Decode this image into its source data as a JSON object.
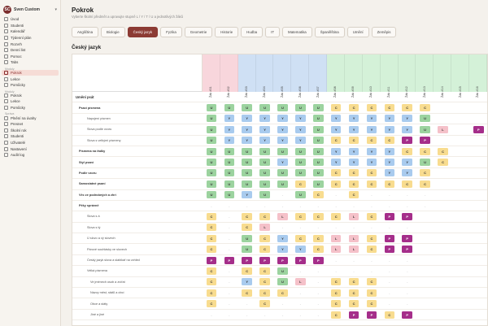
{
  "app": {
    "name": "Sven Custom",
    "logo": "SC"
  },
  "sidebar": {
    "items_top": [
      {
        "label": "Úvod",
        "icon": "home-icon"
      },
      {
        "label": "Studenti",
        "icon": "users-icon"
      },
      {
        "label": "Kalendář",
        "icon": "calendar-icon"
      },
      {
        "label": "Týdenní plán",
        "icon": "week-icon"
      },
      {
        "label": "Rozvrh",
        "icon": "grid-icon"
      },
      {
        "label": "Denní list",
        "icon": "doc-icon"
      },
      {
        "label": "Pomoc",
        "icon": "help-icon"
      },
      {
        "label": "Tabs",
        "icon": "tabs-icon"
      }
    ],
    "section1": "Moduly",
    "items_mid": [
      {
        "label": "Pokrok",
        "icon": "progress-icon",
        "active": true
      },
      {
        "label": "Lekce",
        "icon": "lesson-icon"
      },
      {
        "label": "Pomůcky",
        "icon": "tools-icon"
      }
    ],
    "section2": "Moduly",
    "items_mid2": [
      {
        "label": "Pokrok",
        "icon": "progress-icon"
      },
      {
        "label": "Lekce",
        "icon": "lesson-icon"
      },
      {
        "label": "Pomůcky",
        "icon": "tools-icon"
      }
    ],
    "section3": "Správa",
    "items_bottom": [
      {
        "label": "Plnění na úvahy",
        "icon": "task-icon"
      },
      {
        "label": "Presnet",
        "icon": "present-icon"
      },
      {
        "label": "Školní rok",
        "icon": "year-icon"
      },
      {
        "label": "Studenti",
        "icon": "students-icon"
      },
      {
        "label": "Uživatelé",
        "icon": "user-icon"
      },
      {
        "label": "Nastavení",
        "icon": "settings-icon"
      },
      {
        "label": "Audit log",
        "icon": "log-icon"
      }
    ]
  },
  "page": {
    "title": "Pokrok",
    "subtitle": "Vyberte školní předmět a upravujte stupně L / Y / T / U a jednotlivých žáků",
    "section_title": "Český jazyk"
  },
  "tabs": [
    "Angličtina",
    "Biologie",
    "Český jazyk",
    "Fyzika",
    "Geometrie",
    "Historie",
    "Hudba",
    "IT",
    "Matematika",
    "Španělština",
    "Umění",
    "Zeměpis"
  ],
  "active_tab": 2,
  "students": [
    {
      "name": "Žák #01",
      "color": "pink"
    },
    {
      "name": "Žák #02",
      "color": "pink"
    },
    {
      "name": "Žák #03",
      "color": "blue"
    },
    {
      "name": "Žák #04",
      "color": "blue"
    },
    {
      "name": "Žák #05",
      "color": "blue"
    },
    {
      "name": "Žák #06",
      "color": "blue"
    },
    {
      "name": "Žák #07",
      "color": "blue"
    },
    {
      "name": "Žák #08",
      "color": "green"
    },
    {
      "name": "Žák #09",
      "color": "green"
    },
    {
      "name": "Žák #10",
      "color": "green"
    },
    {
      "name": "Žák #11",
      "color": "green"
    },
    {
      "name": "Žák #12",
      "color": "green"
    },
    {
      "name": "Žák #13",
      "color": "green"
    },
    {
      "name": "Žák #14",
      "color": "green"
    },
    {
      "name": "Žák #15",
      "color": "green"
    },
    {
      "name": "Žák #16",
      "color": "green"
    }
  ],
  "rows": [
    {
      "label": "Umění psát",
      "type": "section",
      "cells": []
    },
    {
      "label": "Psací písmena",
      "type": "group",
      "cells": [
        "U",
        "U",
        "U",
        "U",
        "U",
        "U",
        "U",
        "C",
        "C",
        "C",
        "C",
        "C",
        "C",
        "",
        "",
        ""
      ]
    },
    {
      "label": "Napojení písmen",
      "type": "sub",
      "cells": [
        "U",
        "Y",
        "Y",
        "Y",
        "Y",
        "Y",
        "U",
        "Y",
        "Y",
        "Y",
        "Y",
        "Y",
        "U",
        "",
        "",
        ""
      ]
    },
    {
      "label": "Slova podle vzoru",
      "type": "sub",
      "cells": [
        "U",
        "Y",
        "Y",
        "Y",
        "Y",
        "Y",
        "U",
        "Y",
        "Y",
        "Y",
        "Y",
        "Y",
        "U",
        "L",
        "",
        "P"
      ]
    },
    {
      "label": "Slova s velkými písmeny",
      "type": "sub",
      "cells": [
        "U",
        "Y",
        "Y",
        "Y",
        "Y",
        "Y",
        "U",
        "C",
        "C",
        "C",
        "C",
        "P",
        "P",
        "",
        "",
        ""
      ]
    },
    {
      "label": "Písmena na řádky",
      "type": "group",
      "cells": [
        "U",
        "U",
        "U",
        "U",
        "U",
        "U",
        "U",
        "Y",
        "Y",
        "Y",
        "Y",
        "C",
        "C",
        "C",
        "",
        ""
      ]
    },
    {
      "label": "Styl psaní",
      "type": "group",
      "cells": [
        "U",
        "U",
        "U",
        "U",
        "Y",
        "U",
        "U",
        "Y",
        "Y",
        "Y",
        "Y",
        "Y",
        "U",
        "C",
        "",
        ""
      ]
    },
    {
      "label": "Podle vzoru",
      "type": "group",
      "cells": [
        "U",
        "U",
        "U",
        "U",
        "U",
        "U",
        "U",
        "C",
        "C",
        "C",
        "Y",
        "Y",
        "C",
        "",
        "",
        ""
      ]
    },
    {
      "label": "Samostatné psaní",
      "type": "group",
      "cells": [
        "U",
        "U",
        "U",
        "U",
        "U",
        "C",
        "U",
        "C",
        "C",
        "C",
        "C",
        "C",
        "C",
        "",
        "",
        ""
      ]
    },
    {
      "label": "Věc ze podrobných a zhrí",
      "type": "group",
      "cells": [
        "U",
        "U",
        "Y",
        "U",
        "-",
        "U",
        "C",
        "-",
        "C",
        "-",
        "-",
        "-",
        "-",
        "",
        "",
        ""
      ]
    },
    {
      "label": "Pěky správně",
      "type": "group",
      "cells": [
        "-",
        "-",
        "-",
        "-",
        "-",
        "-",
        "-",
        "-",
        "-",
        "-",
        "-",
        "-",
        "-",
        "",
        "",
        ""
      ]
    },
    {
      "label": "Slova s á",
      "type": "sub",
      "cells": [
        "C",
        "-",
        "C",
        "C",
        "L",
        "C",
        "C",
        "C",
        "L",
        "C",
        "P",
        "P",
        "",
        "",
        "",
        ""
      ]
    },
    {
      "label": "Slova s tý",
      "type": "sub",
      "cells": [
        "C",
        "-",
        "C",
        "L",
        "-",
        "-",
        "-",
        "-",
        "-",
        "-",
        "-",
        "-",
        "",
        "",
        "",
        ""
      ]
    },
    {
      "label": "Ú slovo a vý slovech",
      "type": "sub",
      "cells": [
        "C",
        "-",
        "U",
        "C",
        "Y",
        "C",
        "C",
        "L",
        "L",
        "C",
        "P",
        "P",
        "",
        "",
        "",
        ""
      ]
    },
    {
      "label": "Párové souhlásky ve slovech",
      "type": "sub",
      "cells": [
        "C",
        "-",
        "U",
        "C",
        "Y",
        "Y",
        "C",
        "L",
        "L",
        "C",
        "P",
        "P",
        "",
        "",
        "",
        ""
      ]
    },
    {
      "label": "Český jazyk slova a slabikář na vzhled",
      "type": "sub",
      "cells": [
        "P",
        "P",
        "P",
        "P",
        "P",
        "P",
        "P",
        "-",
        "-",
        "-",
        "-",
        "-",
        "",
        "",
        "",
        ""
      ]
    },
    {
      "label": "Velká písmena",
      "type": "sub",
      "cells": [
        "C",
        "-",
        "C",
        "C",
        "U",
        "-",
        "-",
        "-",
        "-",
        "-",
        "-",
        "-",
        "",
        "",
        "",
        ""
      ]
    },
    {
      "label": "Ve jménech osob a zvířat",
      "type": "sub2",
      "cells": [
        "C",
        "-",
        "Y",
        "C",
        "U",
        "L",
        "-",
        "C",
        "C",
        "C",
        "-",
        "-",
        "",
        "",
        "",
        ""
      ]
    },
    {
      "label": "Názvy měst, států a obcí",
      "type": "sub2",
      "cells": [
        "C",
        "-",
        "C",
        "C",
        "C",
        "-",
        "-",
        "C",
        "C",
        "C",
        "-",
        "-",
        "",
        "",
        "",
        ""
      ]
    },
    {
      "label": "Obce a státy",
      "type": "sub2",
      "cells": [
        "C",
        "-",
        "-",
        "C",
        "-",
        "-",
        "-",
        "C",
        "C",
        "C",
        "-",
        "-",
        "",
        "",
        "",
        ""
      ]
    },
    {
      "label": "Jiné a jiné",
      "type": "sub2",
      "cells": [
        "-",
        "-",
        "-",
        "-",
        "-",
        "-",
        "-",
        "C",
        "P",
        "P",
        "C",
        "P",
        "",
        "",
        "",
        ""
      ]
    }
  ]
}
